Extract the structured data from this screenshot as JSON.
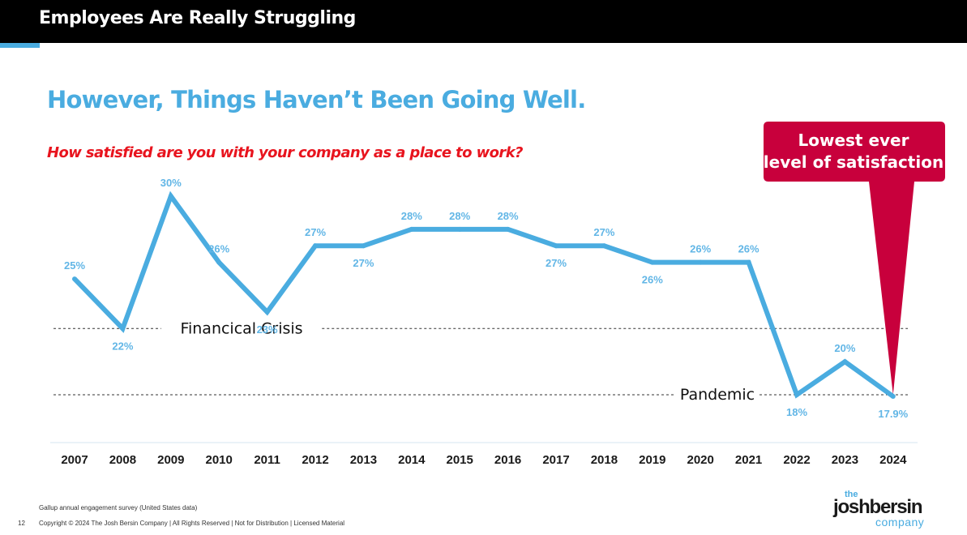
{
  "header": {
    "title": "Employees Are Really Struggling"
  },
  "headline": "However, Things Haven’t Been Going Well.",
  "question": "How satisfied are you with your company as a place to work?",
  "colors": {
    "accent": "#4aace0",
    "callout": "#c8003c",
    "question": "#e8141e",
    "topbar": "#000000"
  },
  "chart_data": {
    "type": "line",
    "categories": [
      "2007",
      "2008",
      "2009",
      "2010",
      "2011",
      "2012",
      "2013",
      "2014",
      "2015",
      "2016",
      "2017",
      "2018",
      "2019",
      "2020",
      "2021",
      "2022",
      "2023",
      "2024"
    ],
    "values": [
      25,
      22,
      30,
      26,
      23,
      27,
      27,
      28,
      28,
      28,
      27,
      27,
      26,
      26,
      26,
      18,
      20,
      17.9
    ],
    "value_labels": [
      "25%",
      "22%",
      "30%",
      "26%",
      "23%",
      "27%",
      "27%",
      "28%",
      "28%",
      "28%",
      "27%",
      "27%",
      "26%",
      "26%",
      "26%",
      "18%",
      "20%",
      "17.9%"
    ],
    "ylim": [
      17.9,
      30
    ],
    "reference_lines": [
      {
        "label": "Financical Crisis",
        "value": 22
      },
      {
        "label": "Pandemic",
        "value": 18
      }
    ],
    "callout": "Lowest ever level of satisfaction",
    "callout_lines": [
      "Lowest ever",
      "level of satisfaction"
    ],
    "grid": false,
    "legend": "none"
  },
  "footer": {
    "source": "Gallup annual engagement survey (United States data)",
    "page_number": "12",
    "copyright": "Copyright © 2024 The Josh Bersin Company | All Rights Reserved | Not for Distribution  | Licensed Material"
  },
  "logo": {
    "the": "the",
    "name": "joshbersin",
    "company": "company"
  }
}
